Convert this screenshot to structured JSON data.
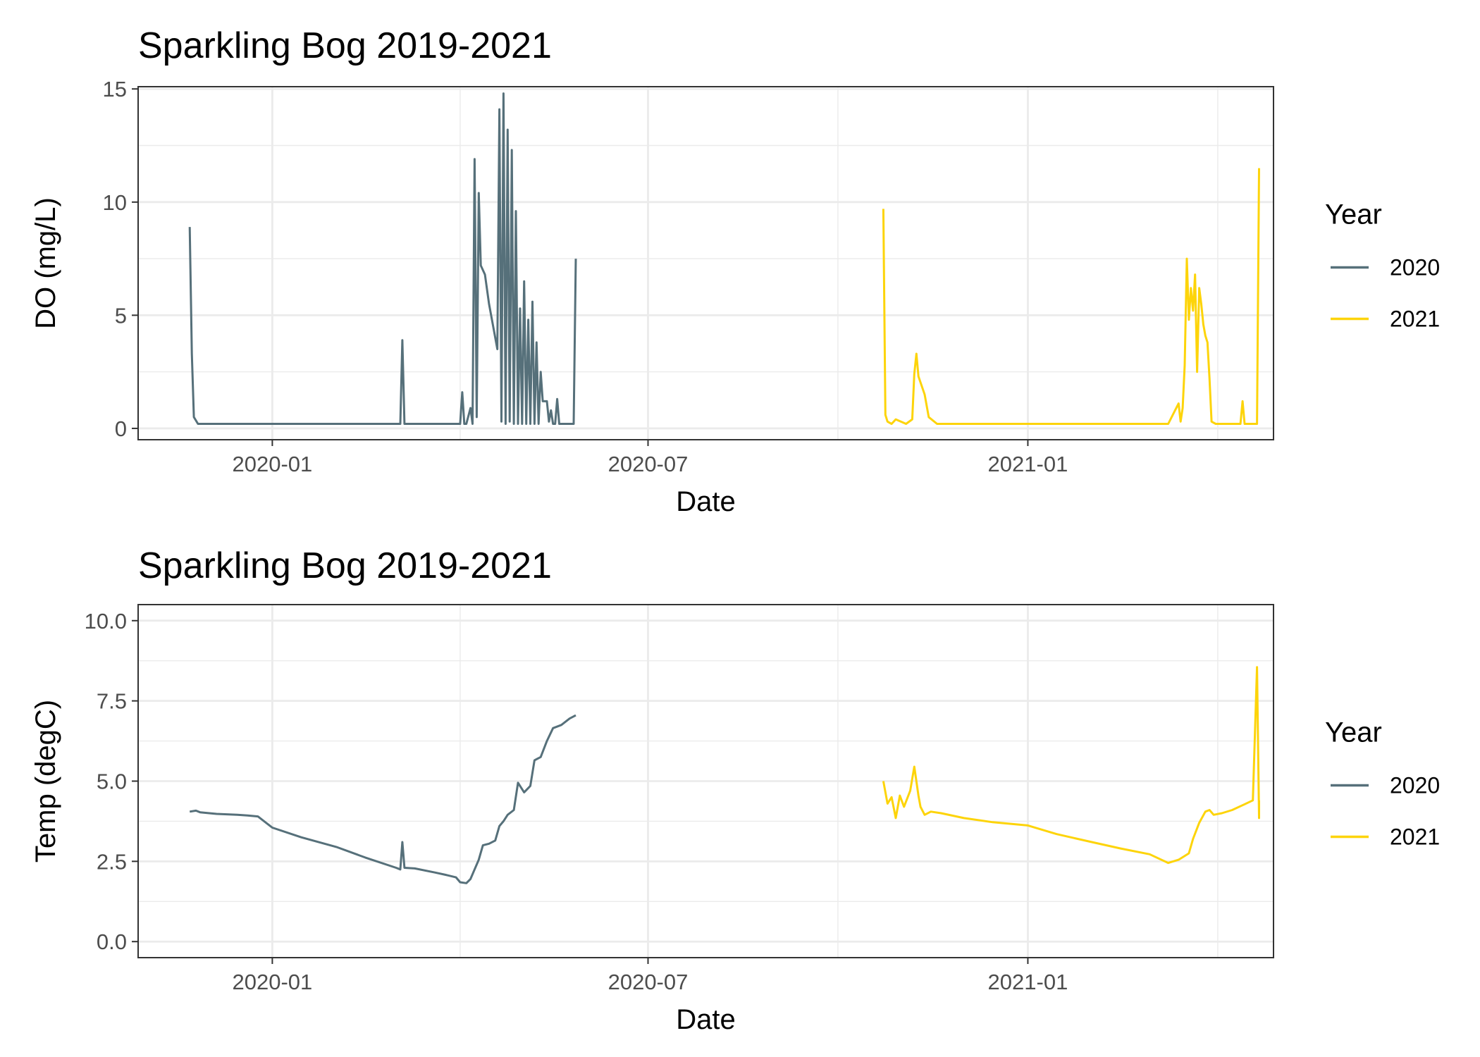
{
  "chart_data": [
    {
      "type": "line",
      "title": "Sparkling Bog 2019-2021",
      "xlabel": "Date",
      "ylabel": "DO (mg/L)",
      "xlim": [
        "2019-10-28",
        "2021-04-30"
      ],
      "ylim": [
        -0.5,
        15.1
      ],
      "yticks": [
        0,
        5,
        10,
        15
      ],
      "xticks": [
        "2020-01",
        "2020-07",
        "2021-01"
      ],
      "grid": true,
      "legend": {
        "title": "Year",
        "position": "right"
      },
      "series": [
        {
          "name": "2020",
          "color": "#56707a",
          "x": [
            "2019-11-22",
            "2019-11-23",
            "2019-11-24",
            "2019-11-26",
            "2019-12-10",
            "2020-01-15",
            "2020-02-20",
            "2020-03-03",
            "2020-03-04",
            "2020-03-05",
            "2020-03-20",
            "2020-04-01",
            "2020-04-02",
            "2020-04-03",
            "2020-04-04",
            "2020-04-06",
            "2020-04-07",
            "2020-04-08",
            "2020-04-09",
            "2020-04-10",
            "2020-04-11",
            "2020-04-13",
            "2020-04-15",
            "2020-04-17",
            "2020-04-19",
            "2020-04-20",
            "2020-04-21",
            "2020-04-22",
            "2020-04-23",
            "2020-04-24",
            "2020-04-25",
            "2020-04-26",
            "2020-04-27",
            "2020-04-28",
            "2020-04-29",
            "2020-04-30",
            "2020-05-01",
            "2020-05-02",
            "2020-05-03",
            "2020-05-04",
            "2020-05-05",
            "2020-05-06",
            "2020-05-07",
            "2020-05-08",
            "2020-05-09",
            "2020-05-10",
            "2020-05-11",
            "2020-05-13",
            "2020-05-14",
            "2020-05-15",
            "2020-05-16",
            "2020-05-17",
            "2020-05-18",
            "2020-05-19",
            "2020-05-20",
            "2020-05-21",
            "2020-05-22",
            "2020-05-23",
            "2020-05-24",
            "2020-05-25",
            "2020-05-26",
            "2020-05-27"
          ],
          "values": [
            8.9,
            3.3,
            0.5,
            0.2,
            0.2,
            0.2,
            0.2,
            0.2,
            3.9,
            0.2,
            0.2,
            0.2,
            1.6,
            0.2,
            0.2,
            0.9,
            0.2,
            11.9,
            0.5,
            10.4,
            7.2,
            6.8,
            5.5,
            4.5,
            3.5,
            14.1,
            0.3,
            14.8,
            0.2,
            13.2,
            0.3,
            12.3,
            0.2,
            9.6,
            0.2,
            5.3,
            0.2,
            6.5,
            0.2,
            4.8,
            0.2,
            5.6,
            0.2,
            3.8,
            0.2,
            2.5,
            1.2,
            1.2,
            0.3,
            0.8,
            0.2,
            0.2,
            1.3,
            0.2,
            0.2,
            0.2,
            0.2,
            0.2,
            0.2,
            0.2,
            0.2,
            7.5
          ]
        },
        {
          "name": "2021",
          "color": "#fdd40a",
          "x": [
            "2020-10-23",
            "2020-10-24",
            "2020-10-25",
            "2020-10-27",
            "2020-10-29",
            "2020-11-03",
            "2020-11-06",
            "2020-11-07",
            "2020-11-08",
            "2020-11-09",
            "2020-11-12",
            "2020-11-14",
            "2020-11-18",
            "2020-11-25",
            "2020-12-01",
            "2021-01-15",
            "2021-02-15",
            "2021-03-10",
            "2021-03-15",
            "2021-03-16",
            "2021-03-17",
            "2021-03-18",
            "2021-03-19",
            "2021-03-20",
            "2021-03-21",
            "2021-03-22",
            "2021-03-23",
            "2021-03-24",
            "2021-03-25",
            "2021-03-26",
            "2021-03-27",
            "2021-03-28",
            "2021-03-29",
            "2021-03-30",
            "2021-03-31",
            "2021-04-02",
            "2021-04-04",
            "2021-04-06",
            "2021-04-07",
            "2021-04-08",
            "2021-04-09",
            "2021-04-10",
            "2021-04-14",
            "2021-04-15",
            "2021-04-16",
            "2021-04-17",
            "2021-04-18",
            "2021-04-19",
            "2021-04-21",
            "2021-04-22",
            "2021-04-23"
          ],
          "values": [
            9.7,
            0.6,
            0.3,
            0.2,
            0.4,
            0.2,
            0.4,
            2.4,
            3.3,
            2.3,
            1.5,
            0.5,
            0.2,
            0.2,
            0.2,
            0.2,
            0.2,
            0.2,
            1.1,
            0.3,
            0.9,
            2.8,
            7.5,
            4.8,
            6.2,
            5.2,
            6.8,
            2.5,
            6.2,
            5.5,
            4.6,
            4.1,
            3.8,
            2.2,
            0.3,
            0.2,
            0.2,
            0.2,
            0.2,
            0.2,
            0.2,
            0.2,
            0.2,
            1.2,
            0.2,
            0.2,
            0.2,
            0.2,
            0.2,
            0.2,
            11.5
          ]
        }
      ]
    },
    {
      "type": "line",
      "title": "Sparkling Bog 2019-2021",
      "xlabel": "Date",
      "ylabel": "Temp (degC)",
      "xlim": [
        "2019-10-28",
        "2021-04-30"
      ],
      "ylim": [
        -0.5,
        10.5
      ],
      "yticks": [
        0.0,
        2.5,
        5.0,
        7.5,
        10.0
      ],
      "ytick_labels": [
        "0.0",
        "2.5",
        "5.0",
        "7.5",
        "10.0"
      ],
      "xticks": [
        "2020-01",
        "2020-07",
        "2021-01"
      ],
      "grid": true,
      "legend": {
        "title": "Year",
        "position": "right"
      },
      "series": [
        {
          "name": "2020",
          "color": "#56707a",
          "x": [
            "2019-11-22",
            "2019-11-25",
            "2019-11-27",
            "2019-12-05",
            "2019-12-15",
            "2019-12-20",
            "2019-12-25",
            "2020-01-01",
            "2020-01-15",
            "2020-02-01",
            "2020-02-15",
            "2020-03-01",
            "2020-03-03",
            "2020-03-04",
            "2020-03-05",
            "2020-03-10",
            "2020-03-20",
            "2020-03-25",
            "2020-03-30",
            "2020-04-01",
            "2020-04-04",
            "2020-04-06",
            "2020-04-08",
            "2020-04-10",
            "2020-04-12",
            "2020-04-15",
            "2020-04-18",
            "2020-04-20",
            "2020-04-22",
            "2020-04-24",
            "2020-04-27",
            "2020-04-29",
            "2020-05-02",
            "2020-05-05",
            "2020-05-07",
            "2020-05-10",
            "2020-05-13",
            "2020-05-16",
            "2020-05-20",
            "2020-05-24",
            "2020-05-27"
          ],
          "values": [
            4.05,
            4.08,
            4.03,
            3.98,
            3.95,
            3.93,
            3.9,
            3.55,
            3.25,
            2.95,
            2.62,
            2.3,
            2.25,
            3.1,
            2.3,
            2.28,
            2.15,
            2.08,
            2.0,
            1.85,
            1.82,
            1.95,
            2.25,
            2.55,
            3.0,
            3.05,
            3.15,
            3.6,
            3.75,
            3.95,
            4.1,
            4.95,
            4.65,
            4.85,
            5.65,
            5.75,
            6.25,
            6.65,
            6.75,
            6.95,
            7.05
          ]
        },
        {
          "name": "2021",
          "color": "#fdd40a",
          "x": [
            "2020-10-23",
            "2020-10-25",
            "2020-10-27",
            "2020-10-29",
            "2020-10-31",
            "2020-11-02",
            "2020-11-05",
            "2020-11-07",
            "2020-11-09",
            "2020-11-10",
            "2020-11-12",
            "2020-11-15",
            "2020-11-20",
            "2020-12-01",
            "2020-12-15",
            "2021-01-01",
            "2021-01-15",
            "2021-02-01",
            "2021-02-15",
            "2021-03-01",
            "2021-03-10",
            "2021-03-15",
            "2021-03-20",
            "2021-03-22",
            "2021-03-25",
            "2021-03-28",
            "2021-03-30",
            "2021-04-01",
            "2021-04-05",
            "2021-04-10",
            "2021-04-15",
            "2021-04-20",
            "2021-04-22",
            "2021-04-23",
            "2021-04-23"
          ],
          "values": [
            5.0,
            4.3,
            4.5,
            3.85,
            4.55,
            4.2,
            4.7,
            5.45,
            4.55,
            4.2,
            3.95,
            4.05,
            4.0,
            3.85,
            3.72,
            3.62,
            3.35,
            3.1,
            2.9,
            2.72,
            2.45,
            2.55,
            2.75,
            3.2,
            3.7,
            4.05,
            4.1,
            3.95,
            4.0,
            4.1,
            4.25,
            4.4,
            8.55,
            3.85,
            4.4
          ]
        }
      ]
    }
  ]
}
